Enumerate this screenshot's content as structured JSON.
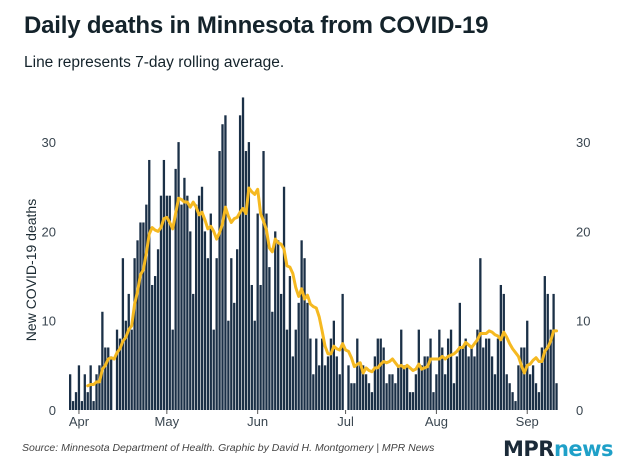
{
  "header": {
    "title": "Daily deaths in Minnesota from COVID-19",
    "subtitle": "Line represents 7-day rolling average."
  },
  "footer": {
    "source": "Source: Minnesota Department of Health. Graphic by David H. Montgomery | MPR News",
    "logo_part1": "MPR",
    "logo_part2": "news"
  },
  "colors": {
    "bar": "#1b3047",
    "line": "#f5b921",
    "grid": "#dddddd",
    "logo_dark": "#1b2a38",
    "logo_accent": "#1fa0c8"
  },
  "chart_data": {
    "type": "bar",
    "title": "Daily deaths in Minnesota from COVID-19",
    "subtitle": "Line represents 7-day rolling average.",
    "xlabel": "",
    "ylabel": "New COVID-19 deaths",
    "ylim": [
      0,
      35
    ],
    "yticks": [
      0,
      10,
      20,
      30
    ],
    "y_axis_sides": [
      "left",
      "right"
    ],
    "grid": false,
    "start_date": "2020-03-29",
    "x_tick_labels": [
      {
        "label": "Apr",
        "day_index": 3
      },
      {
        "label": "May",
        "day_index": 33
      },
      {
        "label": "Jun",
        "day_index": 64
      },
      {
        "label": "Jul",
        "day_index": 94
      },
      {
        "label": "Aug",
        "day_index": 125
      },
      {
        "label": "Sep",
        "day_index": 156
      }
    ],
    "series": [
      {
        "name": "Daily deaths",
        "type": "bar",
        "values": [
          4,
          1,
          2,
          5,
          1,
          4,
          2,
          5,
          1,
          4,
          5,
          11,
          7,
          7,
          6,
          0,
          9,
          8,
          17,
          10,
          13,
          9,
          17,
          19,
          21,
          21,
          23,
          28,
          14,
          15,
          18,
          24,
          28,
          24,
          24,
          9,
          27,
          30,
          23,
          26,
          24,
          20,
          13,
          23,
          24,
          25,
          20,
          17,
          22,
          9,
          17,
          29,
          32,
          33,
          10,
          17,
          12,
          18,
          33,
          35,
          29,
          30,
          14,
          10,
          22,
          14,
          29,
          22,
          16,
          11,
          20,
          19,
          13,
          25,
          9,
          15,
          6,
          9,
          12,
          19,
          17,
          12,
          8,
          4,
          8,
          5,
          8,
          5,
          6,
          8,
          10,
          6,
          4,
          13,
          0,
          5,
          3,
          3,
          8,
          5,
          5,
          4,
          3,
          2,
          6,
          8,
          8,
          7,
          3,
          4,
          4,
          3,
          5,
          9,
          5,
          5,
          2,
          2,
          4,
          9,
          5,
          6,
          6,
          8,
          2,
          4,
          9,
          7,
          4,
          8,
          9,
          3,
          6,
          12,
          7,
          8,
          6,
          7,
          6,
          9,
          17,
          7,
          8,
          8,
          6,
          4,
          8,
          14,
          13,
          4,
          3,
          2,
          1,
          5,
          7,
          7,
          10,
          4,
          5,
          3,
          2,
          7,
          15,
          13,
          9,
          13,
          3
        ]
      },
      {
        "name": "7-day rolling average",
        "type": "line",
        "rolling_window": 7,
        "derived_from": "Daily deaths"
      }
    ]
  }
}
